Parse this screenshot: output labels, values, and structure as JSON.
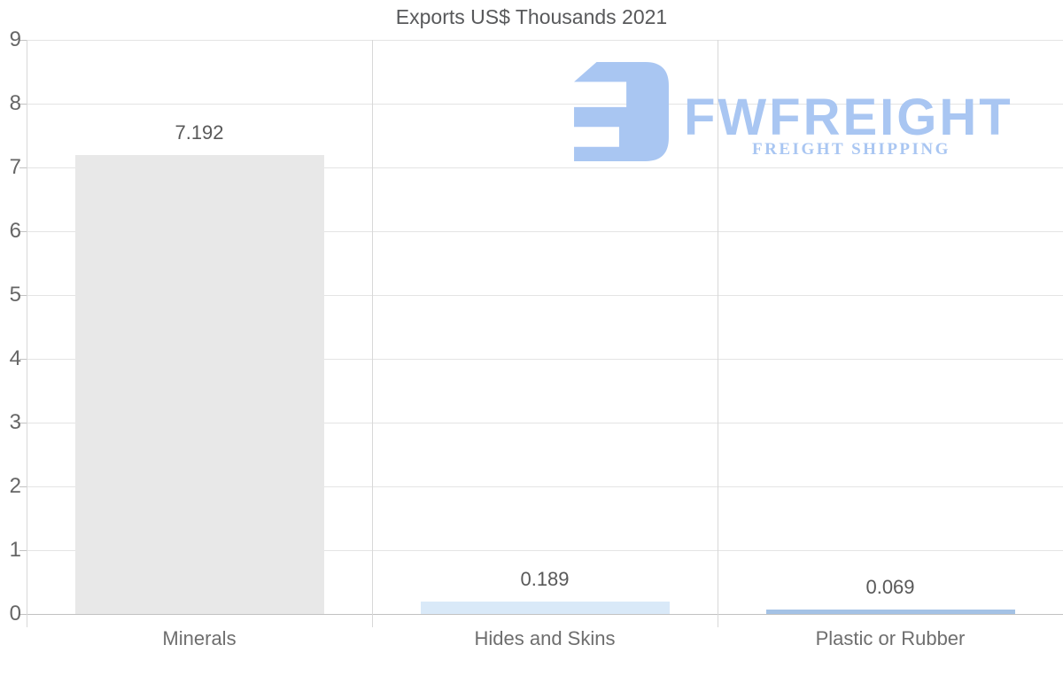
{
  "chart_data": {
    "type": "bar",
    "title": "Exports US$ Thousands 2021",
    "categories": [
      "Minerals",
      "Hides and Skins",
      "Plastic or Rubber"
    ],
    "values": [
      7.192,
      0.189,
      0.069
    ],
    "value_labels": [
      "7.192",
      "0.189",
      "0.069"
    ],
    "bar_colors": [
      "#e8e8e8",
      "#d9e9f8",
      "#a4c2e5"
    ],
    "ylim": [
      0,
      9
    ],
    "yticks": [
      0,
      1,
      2,
      3,
      4,
      5,
      6,
      7,
      8,
      9
    ],
    "xlabel": "",
    "ylabel": "",
    "grid": {
      "horizontal": true,
      "vertical_category_separators": true
    },
    "legend": "none"
  },
  "watermark": {
    "brand": "FWFREIGHT",
    "tagline": "FREIGHT SHIPPING",
    "color": "#a9c6f2"
  },
  "colors": {
    "title_text": "#58595b",
    "axis_tick_text": "#666666",
    "value_label_text": "#595959",
    "category_label_text": "#6e6e6e",
    "gridline": "#e4e4e4",
    "axis_line": "#d8d8d8",
    "baseline": "#c2c2c2",
    "background": "#ffffff"
  }
}
